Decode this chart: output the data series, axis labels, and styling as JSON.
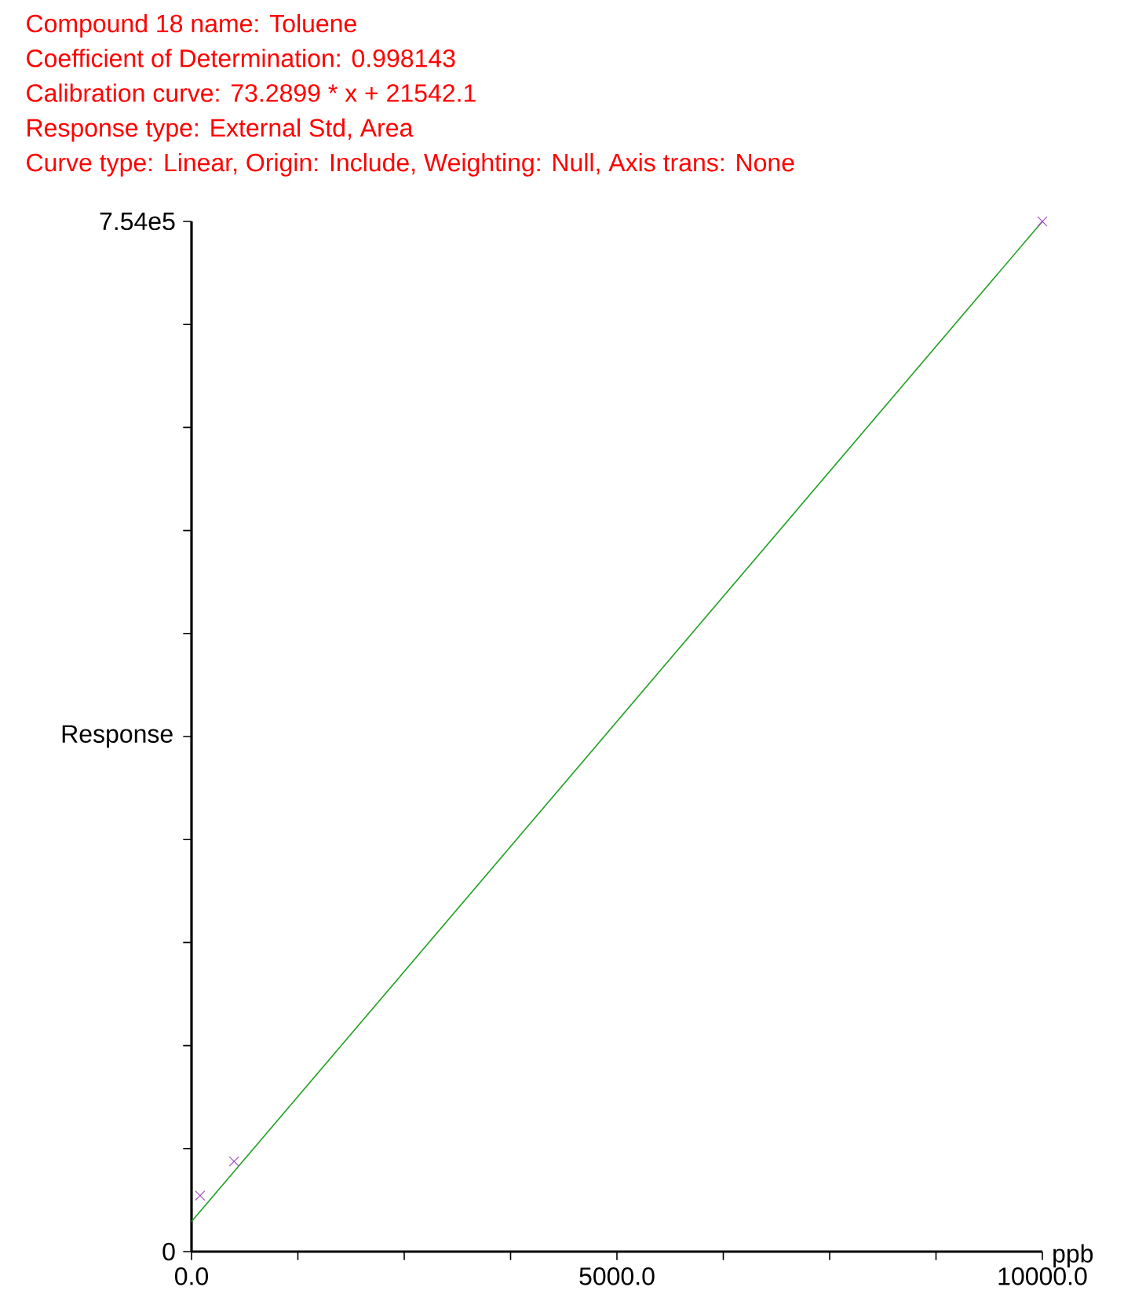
{
  "chart_data": {
    "type": "scatter",
    "title": "Compound 18 name: Toluene",
    "annotations": [
      "Coefficient of Determination: 0.998143",
      "Calibration curve: 73.2899 * x + 21542.1",
      "Response type: External Std, Area",
      "Curve type: Linear, Origin: Include, Weighting: Null, Axis trans: None"
    ],
    "xlabel": "ppb",
    "ylabel": "Response",
    "xlim": [
      0,
      10000
    ],
    "ylim": [
      0,
      754000
    ],
    "xticks": [
      {
        "value": 0,
        "label": "0.0"
      },
      {
        "value": 1250,
        "label": null
      },
      {
        "value": 2500,
        "label": null
      },
      {
        "value": 3750,
        "label": null
      },
      {
        "value": 5000,
        "label": "5000.0"
      },
      {
        "value": 6250,
        "label": null
      },
      {
        "value": 7500,
        "label": null
      },
      {
        "value": 8750,
        "label": null
      },
      {
        "value": 10000,
        "label": "10000.0"
      }
    ],
    "yticks": [
      0,
      {
        "value": 75400,
        "label": null
      },
      {
        "value": 150800,
        "label": null
      },
      {
        "value": 226200,
        "label": null
      },
      {
        "value": 301600,
        "label": null
      },
      {
        "value": 377000,
        "label": null
      },
      {
        "value": 452400,
        "label": null
      },
      {
        "value": 527800,
        "label": null
      },
      {
        "value": 603200,
        "label": null
      },
      {
        "value": 678600,
        "label": null
      },
      {
        "value": 754000,
        "label": "7.54e5"
      }
    ],
    "series": [
      {
        "color": "#a040c0",
        "marker": "cross",
        "x": [
          100,
          500,
          10000
        ],
        "values": [
          41000,
          66000,
          754000
        ]
      },
      {
        "type": "line",
        "color": "#20a020",
        "line_style": "solid",
        "x": [
          0,
          10000
        ],
        "values": [
          22000,
          754000
        ]
      }
    ]
  }
}
